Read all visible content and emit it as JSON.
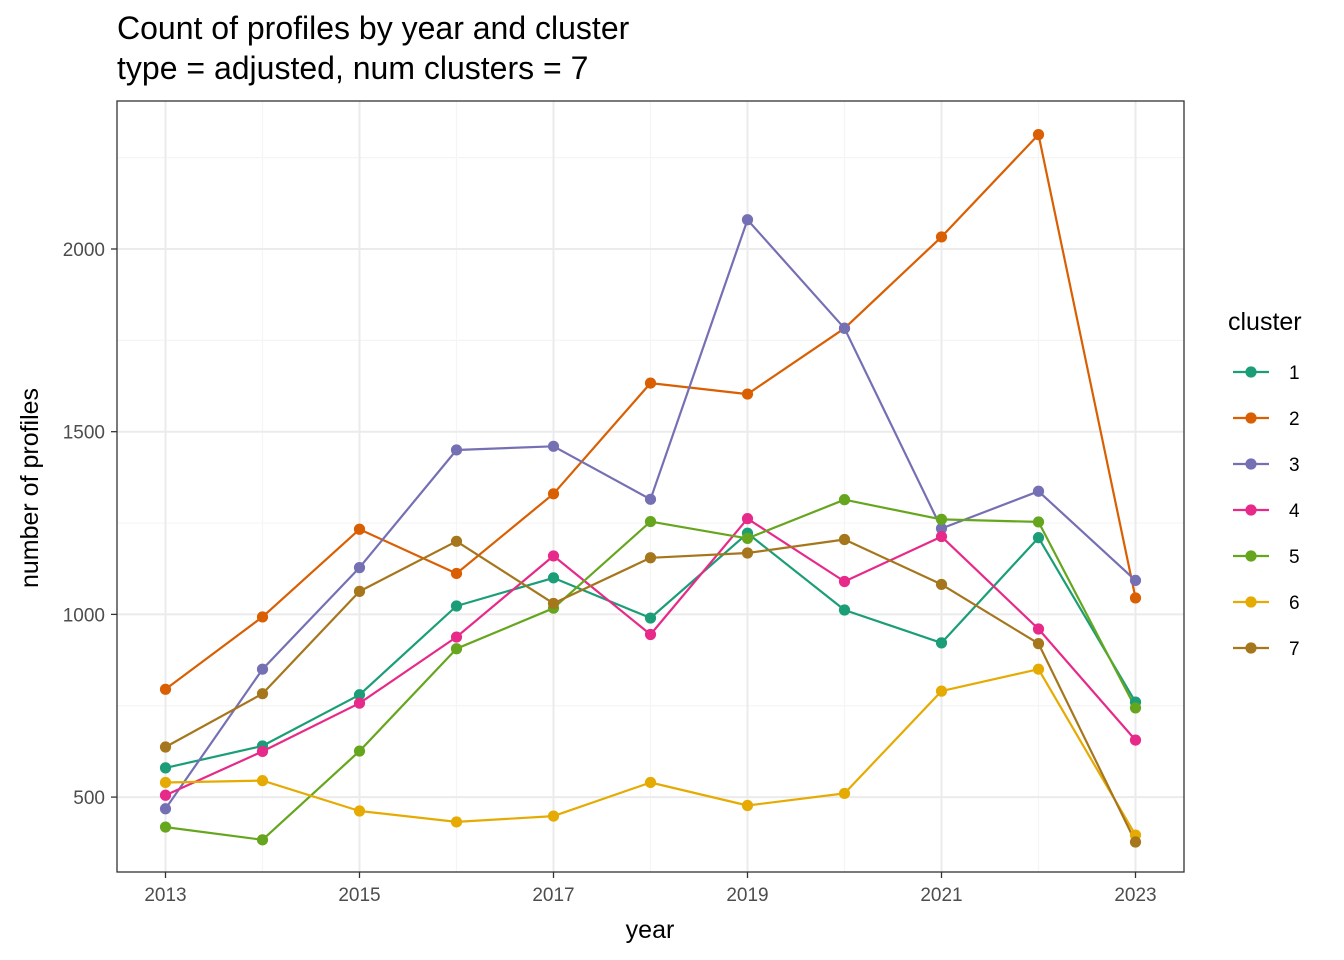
{
  "chart_data": {
    "type": "line",
    "title": "Count of profiles by year and cluster",
    "subtitle": "type = adjusted, num clusters = 7",
    "xlabel": "year",
    "ylabel": "number of profiles",
    "x": [
      2013,
      2014,
      2015,
      2016,
      2017,
      2018,
      2019,
      2020,
      2021,
      2022,
      2023
    ],
    "xlim": [
      2012.5,
      2023.5
    ],
    "ylim": [
      295,
      2405
    ],
    "xticks": [
      2013,
      2015,
      2017,
      2019,
      2021,
      2023
    ],
    "yticks": [
      500,
      1000,
      1500,
      2000
    ],
    "xtick_labels": [
      "2013",
      "2015",
      "2017",
      "2019",
      "2021",
      "2023"
    ],
    "ytick_labels": [
      "500",
      "1000",
      "1500",
      "2000"
    ],
    "grid": true,
    "legend": {
      "title": "cluster",
      "position": "right"
    },
    "series": [
      {
        "name": "1",
        "color": "#1b9e77",
        "values": [
          580,
          640,
          780,
          1023,
          1100,
          990,
          1222,
          1012,
          922,
          1210,
          760
        ]
      },
      {
        "name": "2",
        "color": "#d95f02",
        "values": [
          795,
          993,
          1233,
          1112,
          1330,
          1633,
          1603,
          1783,
          2033,
          2313,
          1045
        ]
      },
      {
        "name": "3",
        "color": "#7570b3",
        "values": [
          468,
          850,
          1128,
          1450,
          1460,
          1315,
          2080,
          1783,
          1235,
          1337,
          1093
        ]
      },
      {
        "name": "4",
        "color": "#e7298a",
        "values": [
          505,
          625,
          757,
          938,
          1160,
          945,
          1262,
          1090,
          1213,
          960,
          656
        ]
      },
      {
        "name": "5",
        "color": "#66a61e",
        "values": [
          418,
          383,
          626,
          906,
          1017,
          1254,
          1208,
          1314,
          1260,
          1253,
          744
        ]
      },
      {
        "name": "6",
        "color": "#e6ab02",
        "values": [
          540,
          545,
          462,
          432,
          448,
          540,
          477,
          510,
          790,
          850,
          396
        ]
      },
      {
        "name": "7",
        "color": "#a6761d",
        "values": [
          637,
          783,
          1063,
          1200,
          1030,
          1155,
          1168,
          1205,
          1082,
          920,
          377
        ]
      }
    ]
  },
  "colors": {
    "panel_border": "#333333",
    "grid_major": "#ebebeb",
    "grid_minor": "#f5f5f5"
  }
}
